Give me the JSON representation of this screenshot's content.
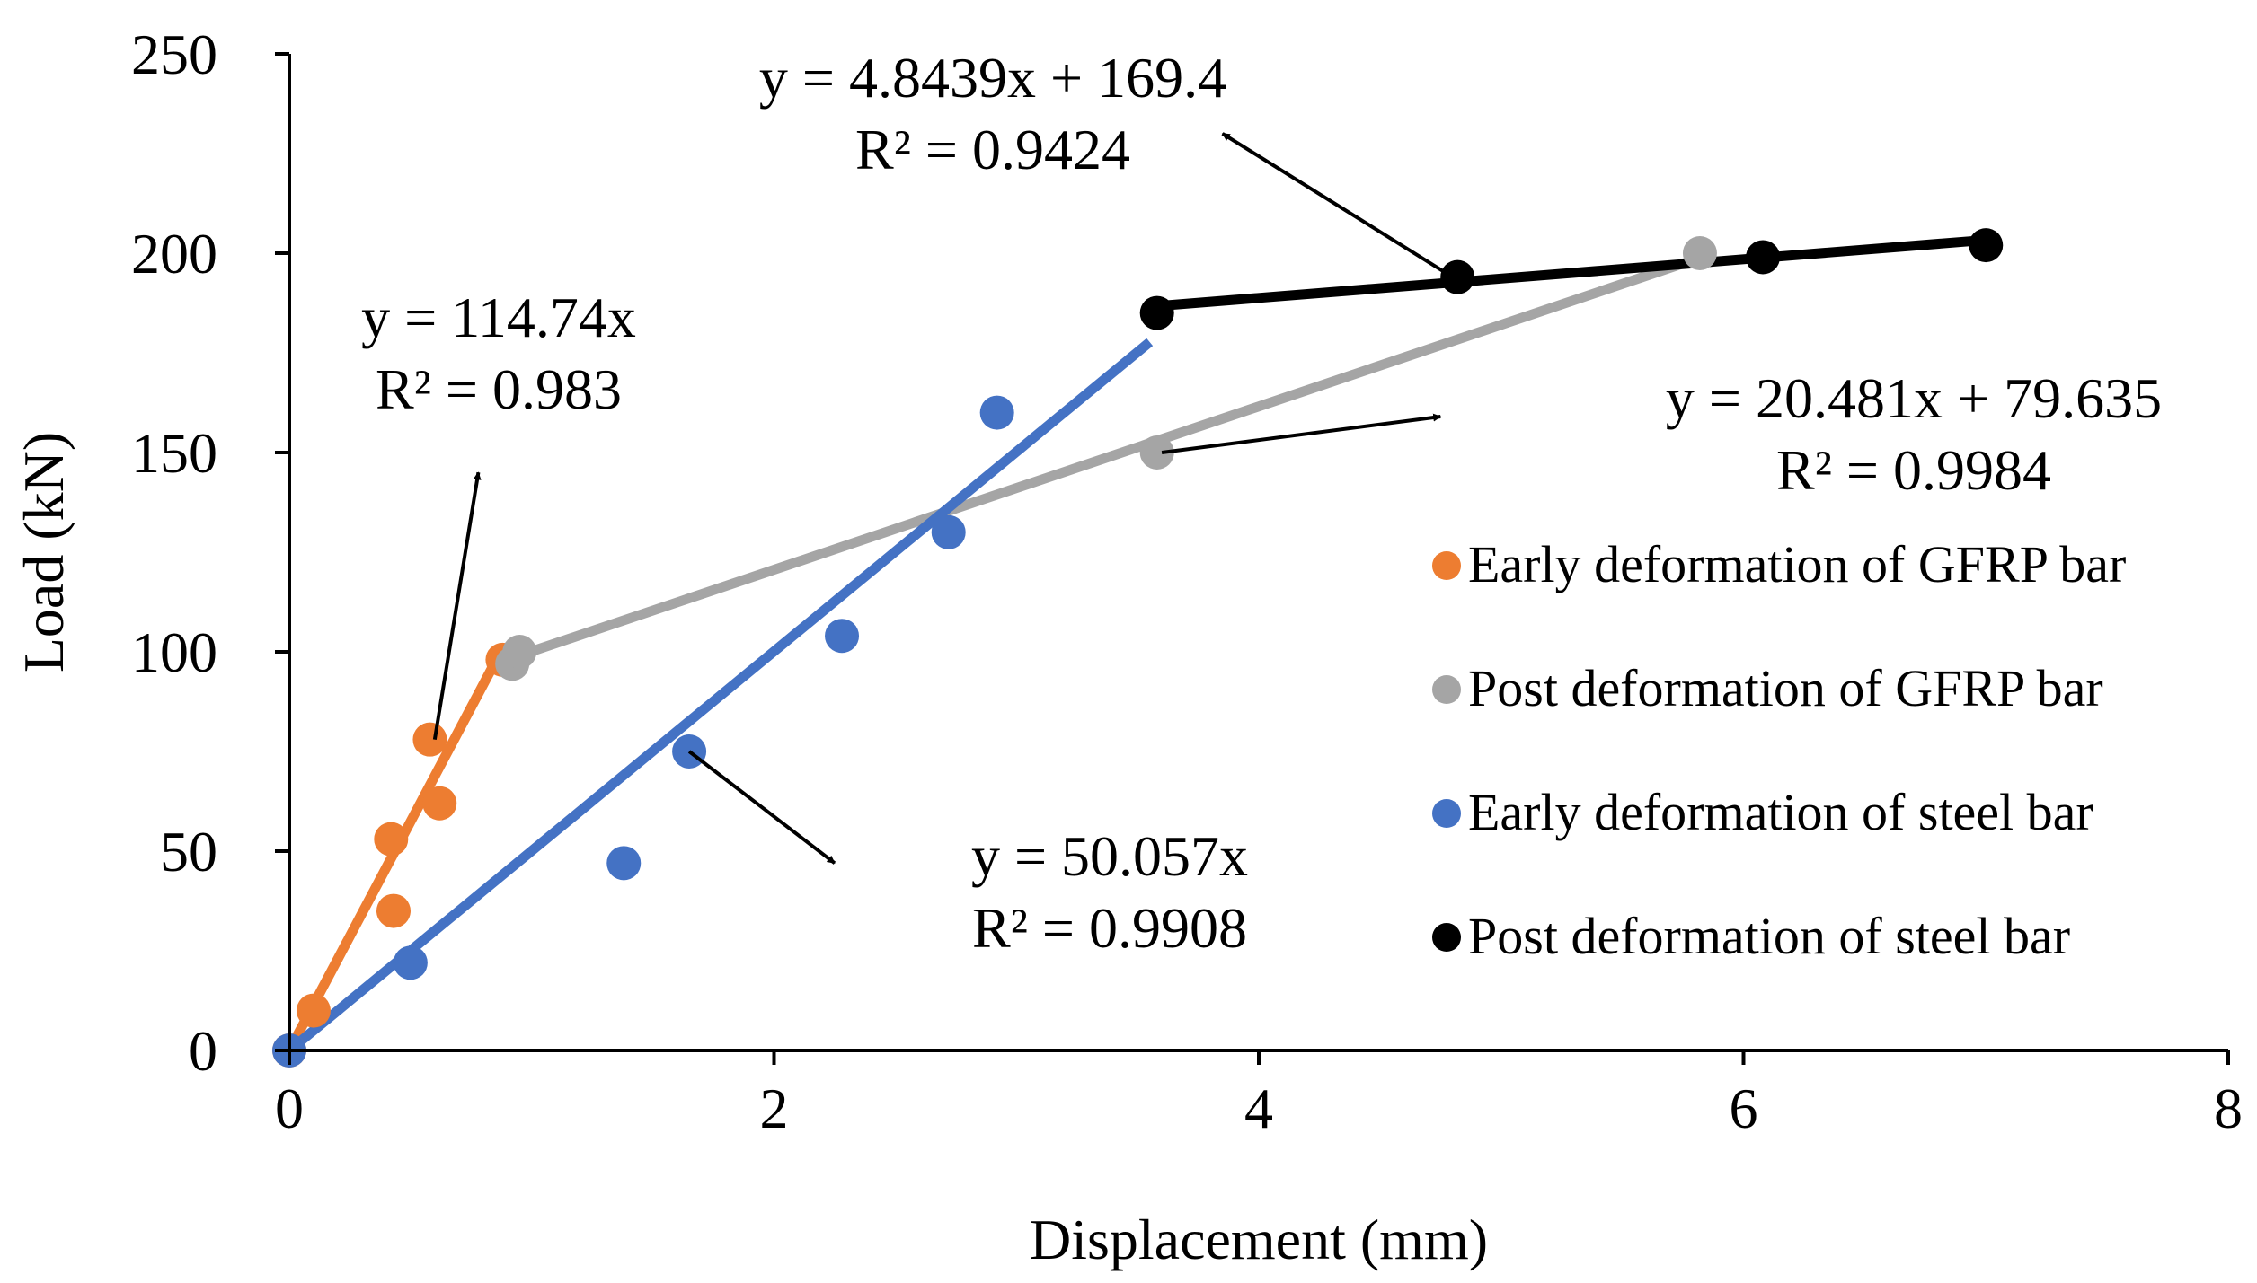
{
  "chart_data": {
    "type": "scatter",
    "title": "",
    "xlabel": "Displacement (mm)",
    "ylabel": "Load (kN)",
    "xlim": [
      0,
      8
    ],
    "ylim": [
      0,
      250
    ],
    "x_ticks": [
      0,
      2,
      4,
      6,
      8
    ],
    "y_ticks": [
      0,
      50,
      100,
      150,
      200,
      250
    ],
    "x_tick_labels": [
      "0",
      "2",
      "4",
      "6",
      "8"
    ],
    "y_tick_labels": [
      "0",
      "50",
      "100",
      "150",
      "200",
      "250"
    ],
    "grid": false,
    "legend_position": "right",
    "series": [
      {
        "name": "Early deformation of GFRP bar",
        "color": "#ED7D31",
        "points": [
          [
            0,
            0
          ],
          [
            0.1,
            10
          ],
          [
            0.42,
            53
          ],
          [
            0.43,
            35
          ],
          [
            0.58,
            78
          ],
          [
            0.62,
            62
          ],
          [
            0.88,
            98
          ]
        ],
        "trendline": {
          "x_range": [
            0,
            0.88
          ],
          "slope": 114.74,
          "intercept": 0
        }
      },
      {
        "name": "Post deformation of GFRP bar",
        "color": "#A5A5A5",
        "points": [
          [
            0.92,
            97
          ],
          [
            0.95,
            100
          ],
          [
            3.58,
            150
          ],
          [
            5.82,
            200
          ]
        ],
        "trendline": {
          "x_range": [
            0.92,
            5.82
          ],
          "slope": 20.481,
          "intercept": 79.635
        }
      },
      {
        "name": "Early deformation of steel bar",
        "color": "#4472C4",
        "points": [
          [
            0,
            0
          ],
          [
            0.5,
            22
          ],
          [
            1.38,
            47
          ],
          [
            1.65,
            75
          ],
          [
            2.28,
            104
          ],
          [
            2.72,
            130
          ],
          [
            2.92,
            160
          ]
        ],
        "trendline": {
          "x_range": [
            0,
            3.55
          ],
          "slope": 50.057,
          "intercept": 0
        }
      },
      {
        "name": "Post deformation of steel bar",
        "color": "#000000",
        "points": [
          [
            3.58,
            185
          ],
          [
            4.82,
            194
          ],
          [
            6.08,
            199
          ],
          [
            7.0,
            202
          ]
        ],
        "trendline": {
          "x_range": [
            3.58,
            7.0
          ],
          "slope": 4.8439,
          "intercept": 169.4
        }
      }
    ],
    "annotations": [
      {
        "id": "steel-post",
        "equation": "y = 4.8439x + 169.4",
        "r2": "R² = 0.9424",
        "arrow_from": [
          4.8,
          194
        ],
        "arrow_to": [
          3.85,
          230
        ]
      },
      {
        "id": "gfrp-early",
        "equation": "y = 114.74x",
        "r2": "R² = 0.983",
        "arrow_from": [
          0.6,
          78
        ],
        "arrow_to": [
          0.78,
          145
        ]
      },
      {
        "id": "gfrp-post",
        "equation": "y = 20.481x + 79.635",
        "r2": "R² = 0.9984",
        "arrow_from": [
          3.6,
          150
        ],
        "arrow_to": [
          4.75,
          159
        ]
      },
      {
        "id": "steel-early",
        "equation": "y = 50.057x",
        "r2": "R² = 0.9908",
        "arrow_from": [
          1.65,
          75
        ],
        "arrow_to": [
          2.25,
          47
        ]
      }
    ]
  }
}
